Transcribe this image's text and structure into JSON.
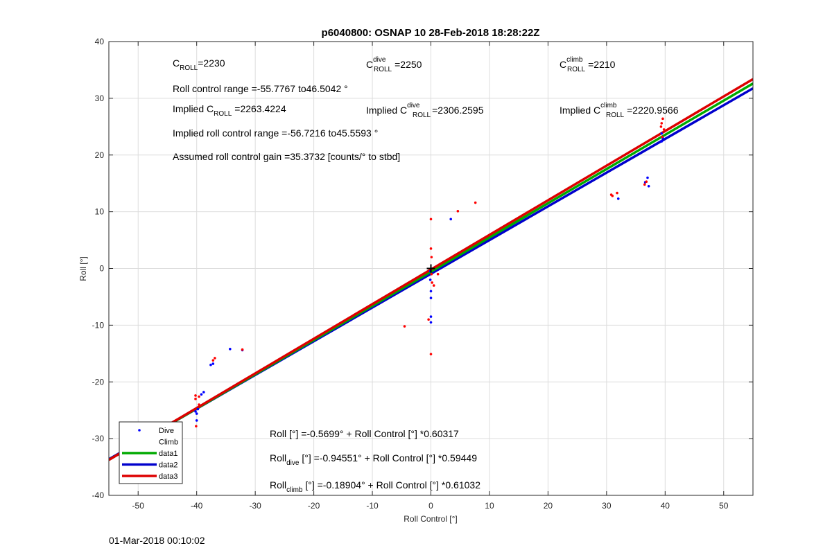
{
  "chart_data": {
    "type": "scatter",
    "title": "p6040800: OSNAP 10 28-Feb-2018 18:28:22Z",
    "xlabel": "Roll Control [°]",
    "ylabel": "Roll [°]",
    "xlim": [
      -55,
      55
    ],
    "ylim": [
      -40,
      40
    ],
    "xticks": [
      -50,
      -40,
      -30,
      -20,
      -10,
      0,
      10,
      20,
      30,
      40,
      50
    ],
    "yticks": [
      -40,
      -30,
      -20,
      -10,
      0,
      10,
      20,
      30,
      40
    ],
    "grid": true,
    "legend_position": "bottom-left",
    "series": [
      {
        "name": "Dive",
        "kind": "points",
        "color": "#0000ff",
        "points": [
          [
            -40,
            -26.8
          ],
          [
            -40,
            -25.6
          ],
          [
            -40.2,
            -25.2
          ],
          [
            -39.8,
            -24.8
          ],
          [
            -39.2,
            -22.2
          ],
          [
            -38.8,
            -21.8
          ],
          [
            -37.6,
            -17.0
          ],
          [
            -37.2,
            -16.8
          ],
          [
            -34.3,
            -14.2
          ],
          [
            -32.2,
            -14.4
          ],
          [
            0,
            -4.0
          ],
          [
            0,
            -5.2
          ],
          [
            0,
            -8.5
          ],
          [
            0,
            -9.5
          ],
          [
            -0.1,
            -2.0
          ],
          [
            -0.1,
            -0.5
          ],
          [
            3.4,
            8.7
          ],
          [
            32.0,
            12.3
          ],
          [
            36.6,
            15.2
          ],
          [
            37.0,
            16.0
          ],
          [
            37.2,
            14.5
          ],
          [
            39.4,
            22.4
          ],
          [
            39.6,
            23.0
          ],
          [
            39.4,
            23.8
          ]
        ]
      },
      {
        "name": "Climb",
        "kind": "points",
        "color": "#ff0000",
        "points": [
          [
            -40.1,
            -27.8
          ],
          [
            -40.2,
            -23.0
          ],
          [
            -40.2,
            -22.4
          ],
          [
            -39.6,
            -22.6
          ],
          [
            -39.6,
            -24.0
          ],
          [
            -37.2,
            -16.2
          ],
          [
            -36.9,
            -15.8
          ],
          [
            -32.2,
            -14.3
          ],
          [
            -4.5,
            -10.2
          ],
          [
            -0.4,
            -9.0
          ],
          [
            0,
            -15.1
          ],
          [
            0,
            8.7
          ],
          [
            0,
            3.5
          ],
          [
            0.1,
            2.0
          ],
          [
            0.1,
            -1.0
          ],
          [
            0.2,
            -2.5
          ],
          [
            0.5,
            -3.0
          ],
          [
            1.2,
            -1.0
          ],
          [
            4.6,
            10.1
          ],
          [
            7.6,
            11.6
          ],
          [
            30.8,
            13.0
          ],
          [
            31.0,
            12.8
          ],
          [
            31.8,
            13.3
          ],
          [
            36.5,
            14.8
          ],
          [
            36.8,
            15.3
          ],
          [
            39.3,
            25.0
          ],
          [
            39.4,
            25.6
          ],
          [
            39.6,
            26.4
          ],
          [
            39.8,
            24.5
          ],
          [
            39.5,
            23.2
          ]
        ]
      },
      {
        "name": "data1",
        "kind": "line",
        "color": "#00aa00",
        "intercept": -0.5699,
        "slope": 0.60317
      },
      {
        "name": "data2",
        "kind": "line",
        "color": "#0000cc",
        "intercept": -0.94551,
        "slope": 0.59449
      },
      {
        "name": "data3",
        "kind": "line",
        "color": "#dd0000",
        "intercept": -0.18904,
        "slope": 0.61032
      }
    ],
    "marker": {
      "x": 0,
      "y": 0,
      "symbol": "+"
    }
  },
  "annotations": {
    "c_roll": {
      "base": "C",
      "sub": "ROLL",
      "value": "=2230"
    },
    "c_roll_dive": {
      "base": "C",
      "sup": "dive",
      "sub": "ROLL",
      "value": "=2250"
    },
    "c_roll_climb": {
      "base": "C",
      "sup": "climb",
      "sub": "ROLL",
      "value": "=2210"
    },
    "roll_range": "Roll control range =-55.7767 to46.5042 °",
    "implied_c_roll": {
      "prefix": "Implied C",
      "sub": "ROLL",
      "value": "=2263.4224"
    },
    "implied_c_roll_dive": {
      "prefix": "Implied C",
      "sup": "dive",
      "sub": "ROLL",
      "value": "=2306.2595"
    },
    "implied_c_roll_climb": {
      "prefix": "Implied C",
      "sup": "climb",
      "sub": "ROLL",
      "value": "=2220.9566"
    },
    "implied_range": "Implied roll control range =-56.7216 to45.5593 °",
    "gain": "Assumed roll control gain =35.3732 [counts/° to stbd]",
    "fit_all": "Roll [°] =-0.5699° + Roll Control [°] *0.60317",
    "fit_dive": {
      "base": "Roll",
      "sub": "dive",
      "rest": " [°] =-0.94551° + Roll Control [°] *0.59449"
    },
    "fit_climb": {
      "base": "Roll",
      "sub": "climb",
      "rest": " [°] =-0.18904° + Roll Control [°] *0.61032"
    }
  },
  "footer": "01-Mar-2018 00:10:02"
}
